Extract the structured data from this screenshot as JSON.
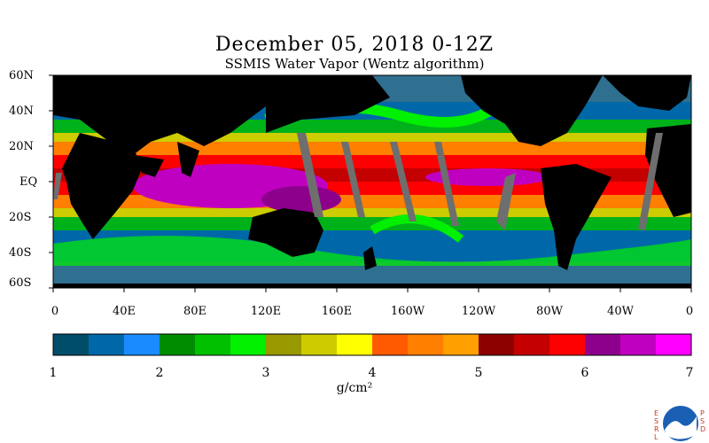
{
  "title": "December 05, 2018 0-12Z",
  "subtitle": "SSMIS Water Vapor (Wentz algorithm)",
  "lat_labels": [
    "60N",
    "40N",
    "20N",
    "EQ",
    "20S",
    "40S",
    "60S"
  ],
  "lon_labels": [
    "0",
    "40E",
    "80E",
    "120E",
    "160E",
    "160W",
    "120W",
    "80W",
    "40W",
    "0"
  ],
  "colorbar": {
    "colors": [
      "#004d6a",
      "#0068a8",
      "#1a8cff",
      "#008c00",
      "#00c000",
      "#00f000",
      "#999900",
      "#cccc00",
      "#ffff00",
      "#ff5a00",
      "#ff7f00",
      "#ffa000",
      "#8c0000",
      "#c40000",
      "#ff0000",
      "#8c008c",
      "#c000c0",
      "#ff00ff"
    ],
    "tick_labels": [
      "1",
      "2",
      "3",
      "4",
      "5",
      "6",
      "7"
    ],
    "units": "g/cm²"
  },
  "legend_palette": {
    "land": "#000000",
    "no_data": "#6e6e6e",
    "ocean_low": "#2f6f8f"
  },
  "logo": {
    "text": "NOAA",
    "side_left": "ESRL",
    "side_right": "PSD"
  }
}
